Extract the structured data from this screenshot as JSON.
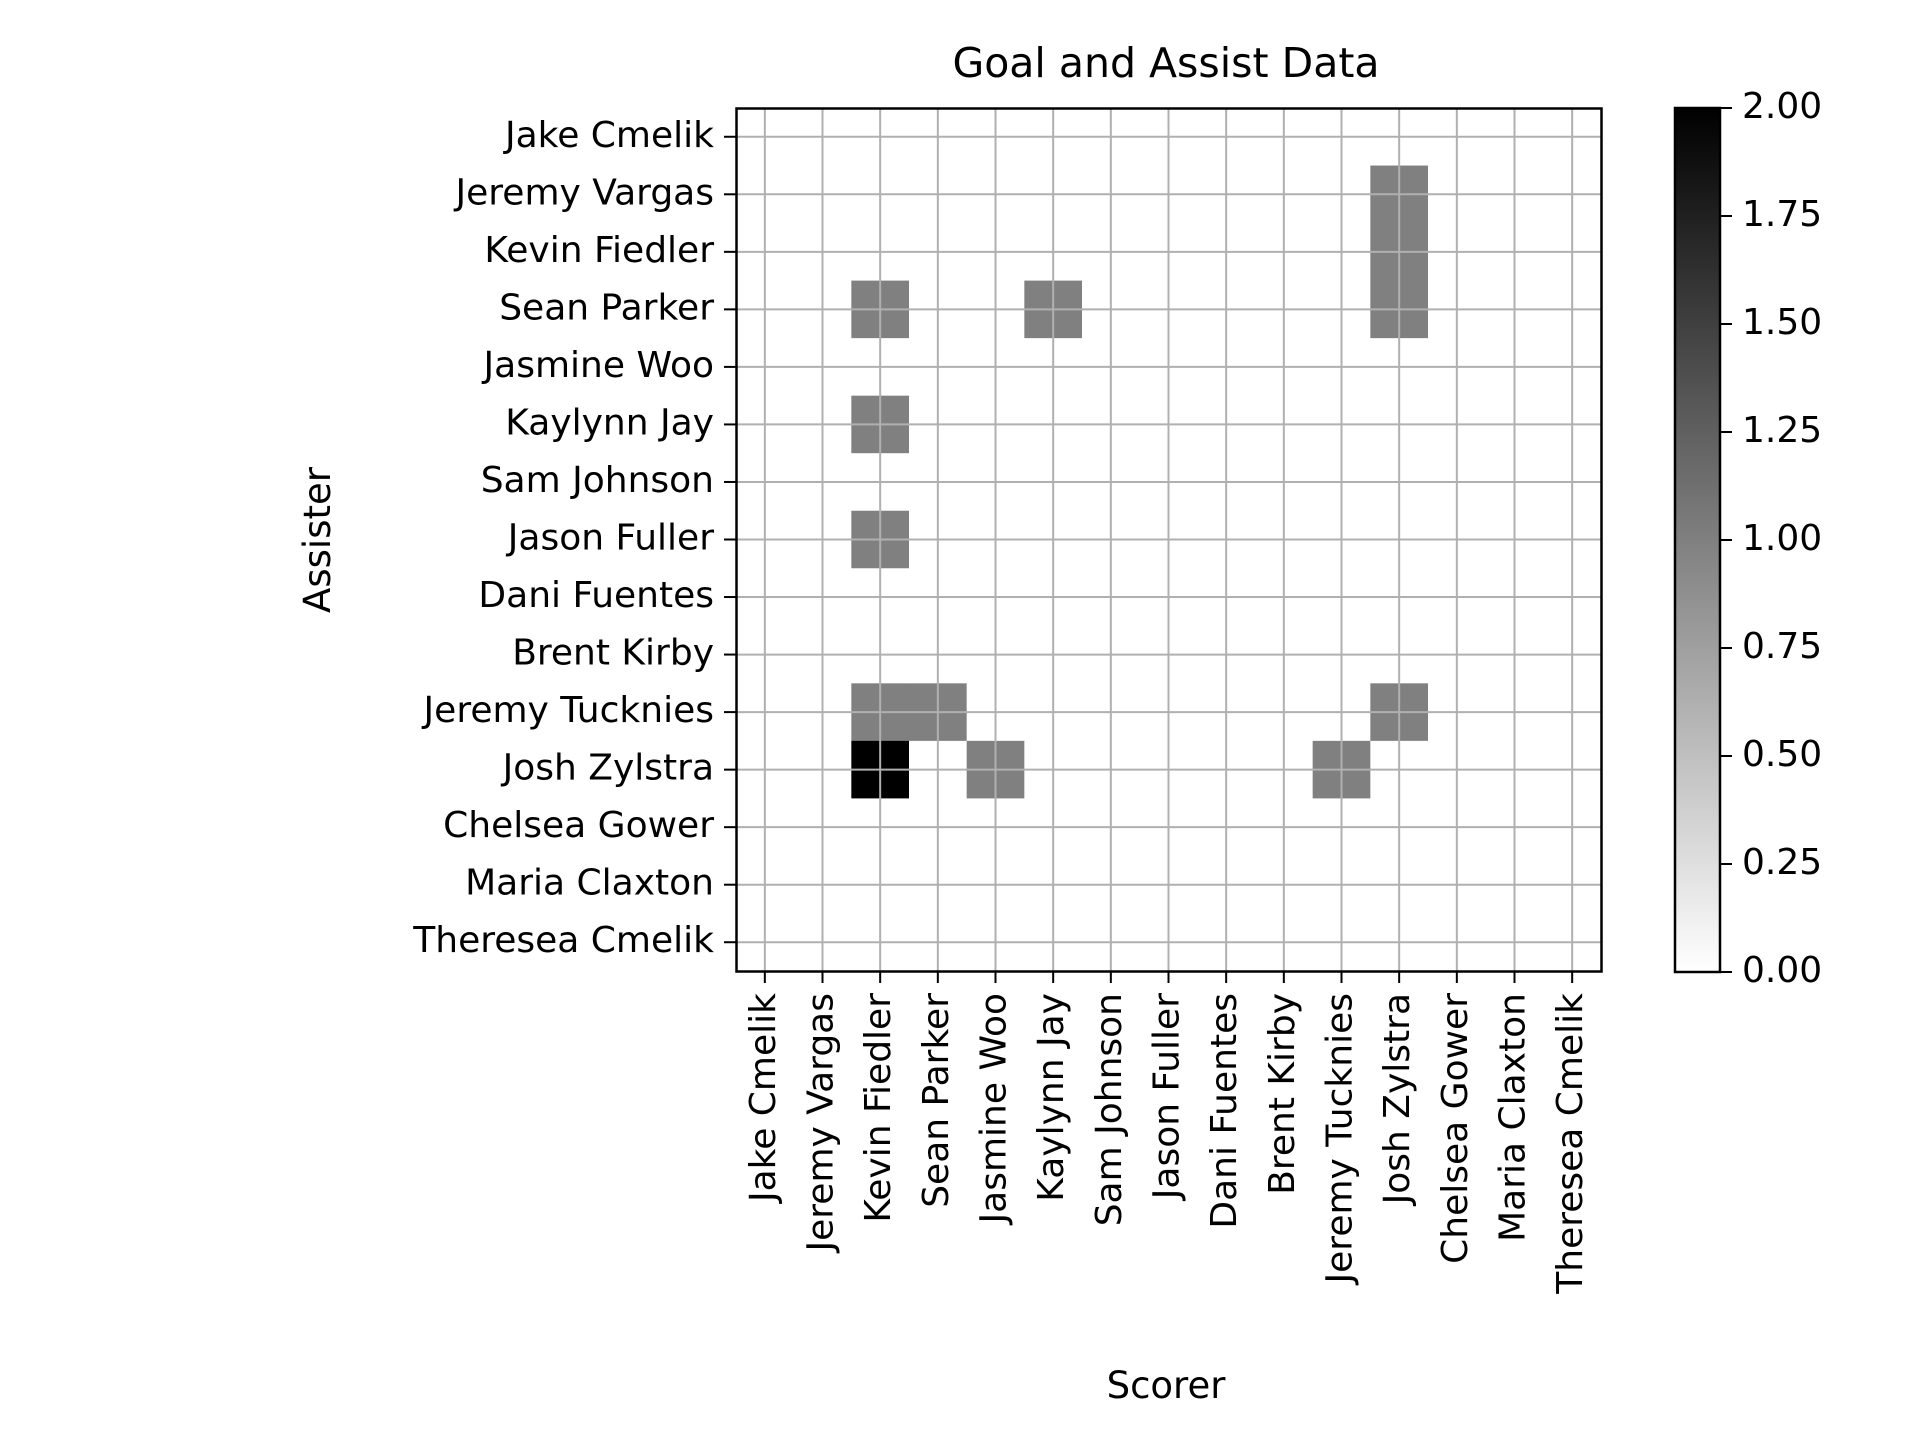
{
  "chart_data": {
    "type": "heatmap",
    "title": "Goal and Assist Data",
    "xlabel": "Scorer",
    "ylabel": "Assister",
    "x_categories": [
      "Jake Cmelik",
      "Jeremy Vargas",
      "Kevin Fiedler",
      "Sean Parker",
      "Jasmine Woo",
      "Kaylynn Jay",
      "Sam Johnson",
      "Jason Fuller",
      "Dani Fuentes",
      "Brent Kirby",
      "Jeremy Tucknies",
      "Josh Zylstra",
      "Chelsea Gower",
      "Maria Claxton",
      "Theresea Cmelik"
    ],
    "y_categories": [
      "Jake Cmelik",
      "Jeremy Vargas",
      "Kevin Fiedler",
      "Sean Parker",
      "Jasmine Woo",
      "Kaylynn Jay",
      "Sam Johnson",
      "Jason Fuller",
      "Dani Fuentes",
      "Brent Kirby",
      "Jeremy Tucknies",
      "Josh Zylstra",
      "Chelsea Gower",
      "Maria Claxton",
      "Theresea Cmelik"
    ],
    "values": [
      [
        0,
        0,
        0,
        0,
        0,
        0,
        0,
        0,
        0,
        0,
        0,
        0,
        0,
        0,
        0
      ],
      [
        0,
        0,
        0,
        0,
        0,
        0,
        0,
        0,
        0,
        0,
        0,
        1,
        0,
        0,
        0
      ],
      [
        0,
        0,
        0,
        0,
        0,
        0,
        0,
        0,
        0,
        0,
        0,
        1,
        0,
        0,
        0
      ],
      [
        0,
        0,
        1,
        0,
        0,
        1,
        0,
        0,
        0,
        0,
        0,
        1,
        0,
        0,
        0
      ],
      [
        0,
        0,
        0,
        0,
        0,
        0,
        0,
        0,
        0,
        0,
        0,
        0,
        0,
        0,
        0
      ],
      [
        0,
        0,
        1,
        0,
        0,
        0,
        0,
        0,
        0,
        0,
        0,
        0,
        0,
        0,
        0
      ],
      [
        0,
        0,
        0,
        0,
        0,
        0,
        0,
        0,
        0,
        0,
        0,
        0,
        0,
        0,
        0
      ],
      [
        0,
        0,
        1,
        0,
        0,
        0,
        0,
        0,
        0,
        0,
        0,
        0,
        0,
        0,
        0
      ],
      [
        0,
        0,
        0,
        0,
        0,
        0,
        0,
        0,
        0,
        0,
        0,
        0,
        0,
        0,
        0
      ],
      [
        0,
        0,
        0,
        0,
        0,
        0,
        0,
        0,
        0,
        0,
        0,
        0,
        0,
        0,
        0
      ],
      [
        0,
        0,
        1,
        1,
        0,
        0,
        0,
        0,
        0,
        0,
        0,
        1,
        0,
        0,
        0
      ],
      [
        0,
        0,
        2,
        0,
        1,
        0,
        0,
        0,
        0,
        0,
        1,
        0,
        0,
        0,
        0
      ],
      [
        0,
        0,
        0,
        0,
        0,
        0,
        0,
        0,
        0,
        0,
        0,
        0,
        0,
        0,
        0
      ],
      [
        0,
        0,
        0,
        0,
        0,
        0,
        0,
        0,
        0,
        0,
        0,
        0,
        0,
        0,
        0
      ],
      [
        0,
        0,
        0,
        0,
        0,
        0,
        0,
        0,
        0,
        0,
        0,
        0,
        0,
        0,
        0
      ]
    ],
    "colorbar": {
      "min": 0,
      "max": 2,
      "ticks": [
        "0.00",
        "0.25",
        "0.50",
        "0.75",
        "1.00",
        "1.25",
        "1.50",
        "1.75",
        "2.00"
      ],
      "colormap": "gray_r"
    },
    "grid": true,
    "colors": {
      "grid": "#b0b0b0",
      "axis": "#000000",
      "low": "#ffffff",
      "high": "#000000"
    }
  }
}
